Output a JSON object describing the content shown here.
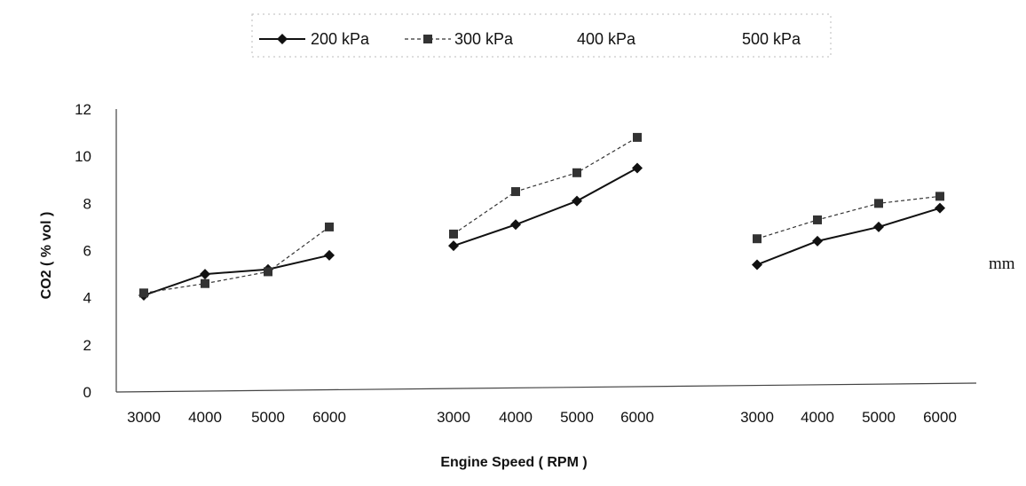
{
  "chart_data": {
    "type": "line",
    "ylabel": "CO2 ( % vol )",
    "xlabel": "Engine Speed ( RPM )",
    "ylim": [
      0,
      12
    ],
    "yticks": [
      0,
      2,
      4,
      6,
      8,
      10,
      12
    ],
    "grid": false,
    "legend_position": "top",
    "groups": [
      {
        "x": [
          "3000",
          "4000",
          "5000",
          "6000"
        ]
      },
      {
        "x": [
          "3000",
          "4000",
          "5000",
          "6000"
        ]
      },
      {
        "x": [
          "3000",
          "4000",
          "5000",
          "6000"
        ]
      }
    ],
    "series": [
      {
        "name": "200 kPa",
        "marker": "diamond",
        "line_style": "solid",
        "color": "#111111",
        "values": [
          [
            4.1,
            5.0,
            5.2,
            5.8
          ],
          [
            6.2,
            7.1,
            8.1,
            9.5
          ],
          [
            5.4,
            6.4,
            7.0,
            7.8
          ]
        ]
      },
      {
        "name": "300 kPa",
        "marker": "square",
        "line_style": "dashed",
        "color": "#333333",
        "values": [
          [
            4.2,
            4.6,
            5.1,
            7.0
          ],
          [
            6.7,
            8.5,
            9.3,
            10.8
          ],
          [
            6.5,
            7.3,
            8.0,
            8.3
          ]
        ]
      },
      {
        "name": "400 kPa",
        "marker": "none",
        "line_style": "none",
        "color": "#555555",
        "values": []
      },
      {
        "name": "500 kPa",
        "marker": "none",
        "line_style": "none",
        "color": "#555555",
        "values": []
      }
    ]
  },
  "side_note": "mm"
}
